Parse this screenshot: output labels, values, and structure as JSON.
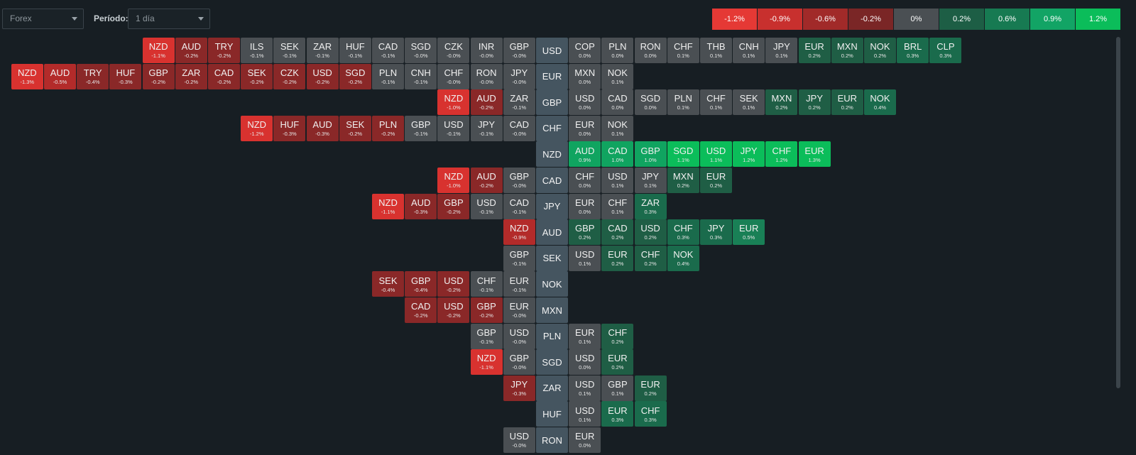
{
  "filters": {
    "market_value": "Forex",
    "period_label": "Período:",
    "period_value": "1 día"
  },
  "legend": [
    {
      "label": "-1.2%",
      "color": "#e53935"
    },
    {
      "label": "-0.9%",
      "color": "#c8302e"
    },
    {
      "label": "-0.6%",
      "color": "#a12a29"
    },
    {
      "label": "-0.2%",
      "color": "#7a2626"
    },
    {
      "label": "0%",
      "color": "#4a4f53"
    },
    {
      "label": "0.2%",
      "color": "#1d5e45"
    },
    {
      "label": "0.6%",
      "color": "#177a52"
    },
    {
      "label": "0.9%",
      "color": "#12a465"
    },
    {
      "label": "1.2%",
      "color": "#0bbd5a"
    }
  ],
  "rows": [
    {
      "base": "USD",
      "left": [
        [
          "NZD",
          "-1.1%"
        ],
        [
          "AUD",
          "-0.2%"
        ],
        [
          "TRY",
          "-0.2%"
        ],
        [
          "ILS",
          "-0.1%"
        ],
        [
          "SEK",
          "-0.1%"
        ],
        [
          "ZAR",
          "-0.1%"
        ],
        [
          "HUF",
          "-0.1%"
        ],
        [
          "CAD",
          "-0.1%"
        ],
        [
          "SGD",
          "-0.0%"
        ],
        [
          "CZK",
          "-0.0%"
        ],
        [
          "INR",
          "-0.0%"
        ],
        [
          "GBP",
          "-0.0%"
        ]
      ],
      "right": [
        [
          "COP",
          "0.0%"
        ],
        [
          "PLN",
          "0.0%"
        ],
        [
          "RON",
          "0.0%"
        ],
        [
          "CHF",
          "0.1%"
        ],
        [
          "THB",
          "0.1%"
        ],
        [
          "CNH",
          "0.1%"
        ],
        [
          "JPY",
          "0.1%"
        ],
        [
          "EUR",
          "0.2%"
        ],
        [
          "MXN",
          "0.2%"
        ],
        [
          "NOK",
          "0.2%"
        ],
        [
          "BRL",
          "0.3%"
        ],
        [
          "CLP",
          "0.3%"
        ]
      ]
    },
    {
      "base": "EUR",
      "left": [
        [
          "NZD",
          "-1.3%"
        ],
        [
          "AUD",
          "-0.5%"
        ],
        [
          "TRY",
          "-0.4%"
        ],
        [
          "HUF",
          "-0.3%"
        ],
        [
          "GBP",
          "-0.2%"
        ],
        [
          "ZAR",
          "-0.2%"
        ],
        [
          "CAD",
          "-0.2%"
        ],
        [
          "SEK",
          "-0.2%"
        ],
        [
          "CZK",
          "-0.2%"
        ],
        [
          "USD",
          "-0.2%"
        ],
        [
          "SGD",
          "-0.2%"
        ],
        [
          "PLN",
          "-0.1%"
        ],
        [
          "CNH",
          "-0.1%"
        ],
        [
          "CHF",
          "-0.0%"
        ],
        [
          "RON",
          "-0.0%"
        ],
        [
          "JPY",
          "-0.0%"
        ]
      ],
      "right": [
        [
          "MXN",
          "0.0%"
        ],
        [
          "NOK",
          "0.1%"
        ]
      ]
    },
    {
      "base": "GBP",
      "left": [
        [
          "NZD",
          "-1.0%"
        ],
        [
          "AUD",
          "-0.2%"
        ],
        [
          "ZAR",
          "-0.1%"
        ]
      ],
      "right": [
        [
          "USD",
          "0.0%"
        ],
        [
          "CAD",
          "0.0%"
        ],
        [
          "SGD",
          "0.0%"
        ],
        [
          "PLN",
          "0.1%"
        ],
        [
          "CHF",
          "0.1%"
        ],
        [
          "SEK",
          "0.1%"
        ],
        [
          "MXN",
          "0.2%"
        ],
        [
          "JPY",
          "0.2%"
        ],
        [
          "EUR",
          "0.2%"
        ],
        [
          "NOK",
          "0.4%"
        ]
      ]
    },
    {
      "base": "CHF",
      "left": [
        [
          "NZD",
          "-1.2%"
        ],
        [
          "HUF",
          "-0.3%"
        ],
        [
          "AUD",
          "-0.3%"
        ],
        [
          "SEK",
          "-0.2%"
        ],
        [
          "PLN",
          "-0.2%"
        ],
        [
          "GBP",
          "-0.1%"
        ],
        [
          "USD",
          "-0.1%"
        ],
        [
          "JPY",
          "-0.1%"
        ],
        [
          "CAD",
          "-0.0%"
        ]
      ],
      "right": [
        [
          "EUR",
          "0.0%"
        ],
        [
          "NOK",
          "0.1%"
        ]
      ]
    },
    {
      "base": "NZD",
      "left": [],
      "right": [
        [
          "AUD",
          "0.9%"
        ],
        [
          "CAD",
          "1.0%"
        ],
        [
          "GBP",
          "1.0%"
        ],
        [
          "SGD",
          "1.1%"
        ],
        [
          "USD",
          "1.1%"
        ],
        [
          "JPY",
          "1.2%"
        ],
        [
          "CHF",
          "1.2%"
        ],
        [
          "EUR",
          "1.3%"
        ]
      ]
    },
    {
      "base": "CAD",
      "left": [
        [
          "NZD",
          "-1.0%"
        ],
        [
          "AUD",
          "-0.2%"
        ],
        [
          "GBP",
          "-0.0%"
        ]
      ],
      "right": [
        [
          "CHF",
          "0.0%"
        ],
        [
          "USD",
          "0.1%"
        ],
        [
          "JPY",
          "0.1%"
        ],
        [
          "MXN",
          "0.2%"
        ],
        [
          "EUR",
          "0.2%"
        ]
      ]
    },
    {
      "base": "JPY",
      "left": [
        [
          "NZD",
          "-1.1%"
        ],
        [
          "AUD",
          "-0.3%"
        ],
        [
          "GBP",
          "-0.2%"
        ],
        [
          "USD",
          "-0.1%"
        ],
        [
          "CAD",
          "-0.1%"
        ]
      ],
      "right": [
        [
          "EUR",
          "0.0%"
        ],
        [
          "CHF",
          "0.1%"
        ],
        [
          "ZAR",
          "0.3%"
        ]
      ]
    },
    {
      "base": "AUD",
      "left": [
        [
          "NZD",
          "-0.9%"
        ]
      ],
      "right": [
        [
          "GBP",
          "0.2%"
        ],
        [
          "CAD",
          "0.2%"
        ],
        [
          "USD",
          "0.2%"
        ],
        [
          "CHF",
          "0.3%"
        ],
        [
          "JPY",
          "0.3%"
        ],
        [
          "EUR",
          "0.5%"
        ]
      ]
    },
    {
      "base": "SEK",
      "left": [
        [
          "GBP",
          "-0.1%"
        ]
      ],
      "right": [
        [
          "USD",
          "0.1%"
        ],
        [
          "EUR",
          "0.2%"
        ],
        [
          "CHF",
          "0.2%"
        ],
        [
          "NOK",
          "0.4%"
        ]
      ]
    },
    {
      "base": "NOK",
      "left": [
        [
          "SEK",
          "-0.4%"
        ],
        [
          "GBP",
          "-0.4%"
        ],
        [
          "USD",
          "-0.2%"
        ],
        [
          "CHF",
          "-0.1%"
        ],
        [
          "EUR",
          "-0.1%"
        ]
      ],
      "right": []
    },
    {
      "base": "MXN",
      "left": [
        [
          "CAD",
          "-0.2%"
        ],
        [
          "USD",
          "-0.2%"
        ],
        [
          "GBP",
          "-0.2%"
        ],
        [
          "EUR",
          "-0.0%"
        ]
      ],
      "right": []
    },
    {
      "base": "PLN",
      "left": [
        [
          "GBP",
          "-0.1%"
        ],
        [
          "USD",
          "-0.0%"
        ]
      ],
      "right": [
        [
          "EUR",
          "0.1%"
        ],
        [
          "CHF",
          "0.2%"
        ]
      ]
    },
    {
      "base": "SGD",
      "left": [
        [
          "NZD",
          "-1.1%"
        ],
        [
          "GBP",
          "-0.0%"
        ]
      ],
      "right": [
        [
          "USD",
          "0.0%"
        ],
        [
          "EUR",
          "0.2%"
        ]
      ]
    },
    {
      "base": "ZAR",
      "left": [
        [
          "JPY",
          "-0.3%"
        ]
      ],
      "right": [
        [
          "USD",
          "0.1%"
        ],
        [
          "GBP",
          "0.1%"
        ],
        [
          "EUR",
          "0.2%"
        ]
      ]
    },
    {
      "base": "HUF",
      "left": [],
      "right": [
        [
          "USD",
          "0.1%"
        ],
        [
          "EUR",
          "0.3%"
        ],
        [
          "CHF",
          "0.3%"
        ]
      ]
    },
    {
      "base": "RON",
      "left": [
        [
          "USD",
          "-0.0%"
        ]
      ],
      "right": [
        [
          "EUR",
          "0.0%"
        ]
      ]
    }
  ]
}
